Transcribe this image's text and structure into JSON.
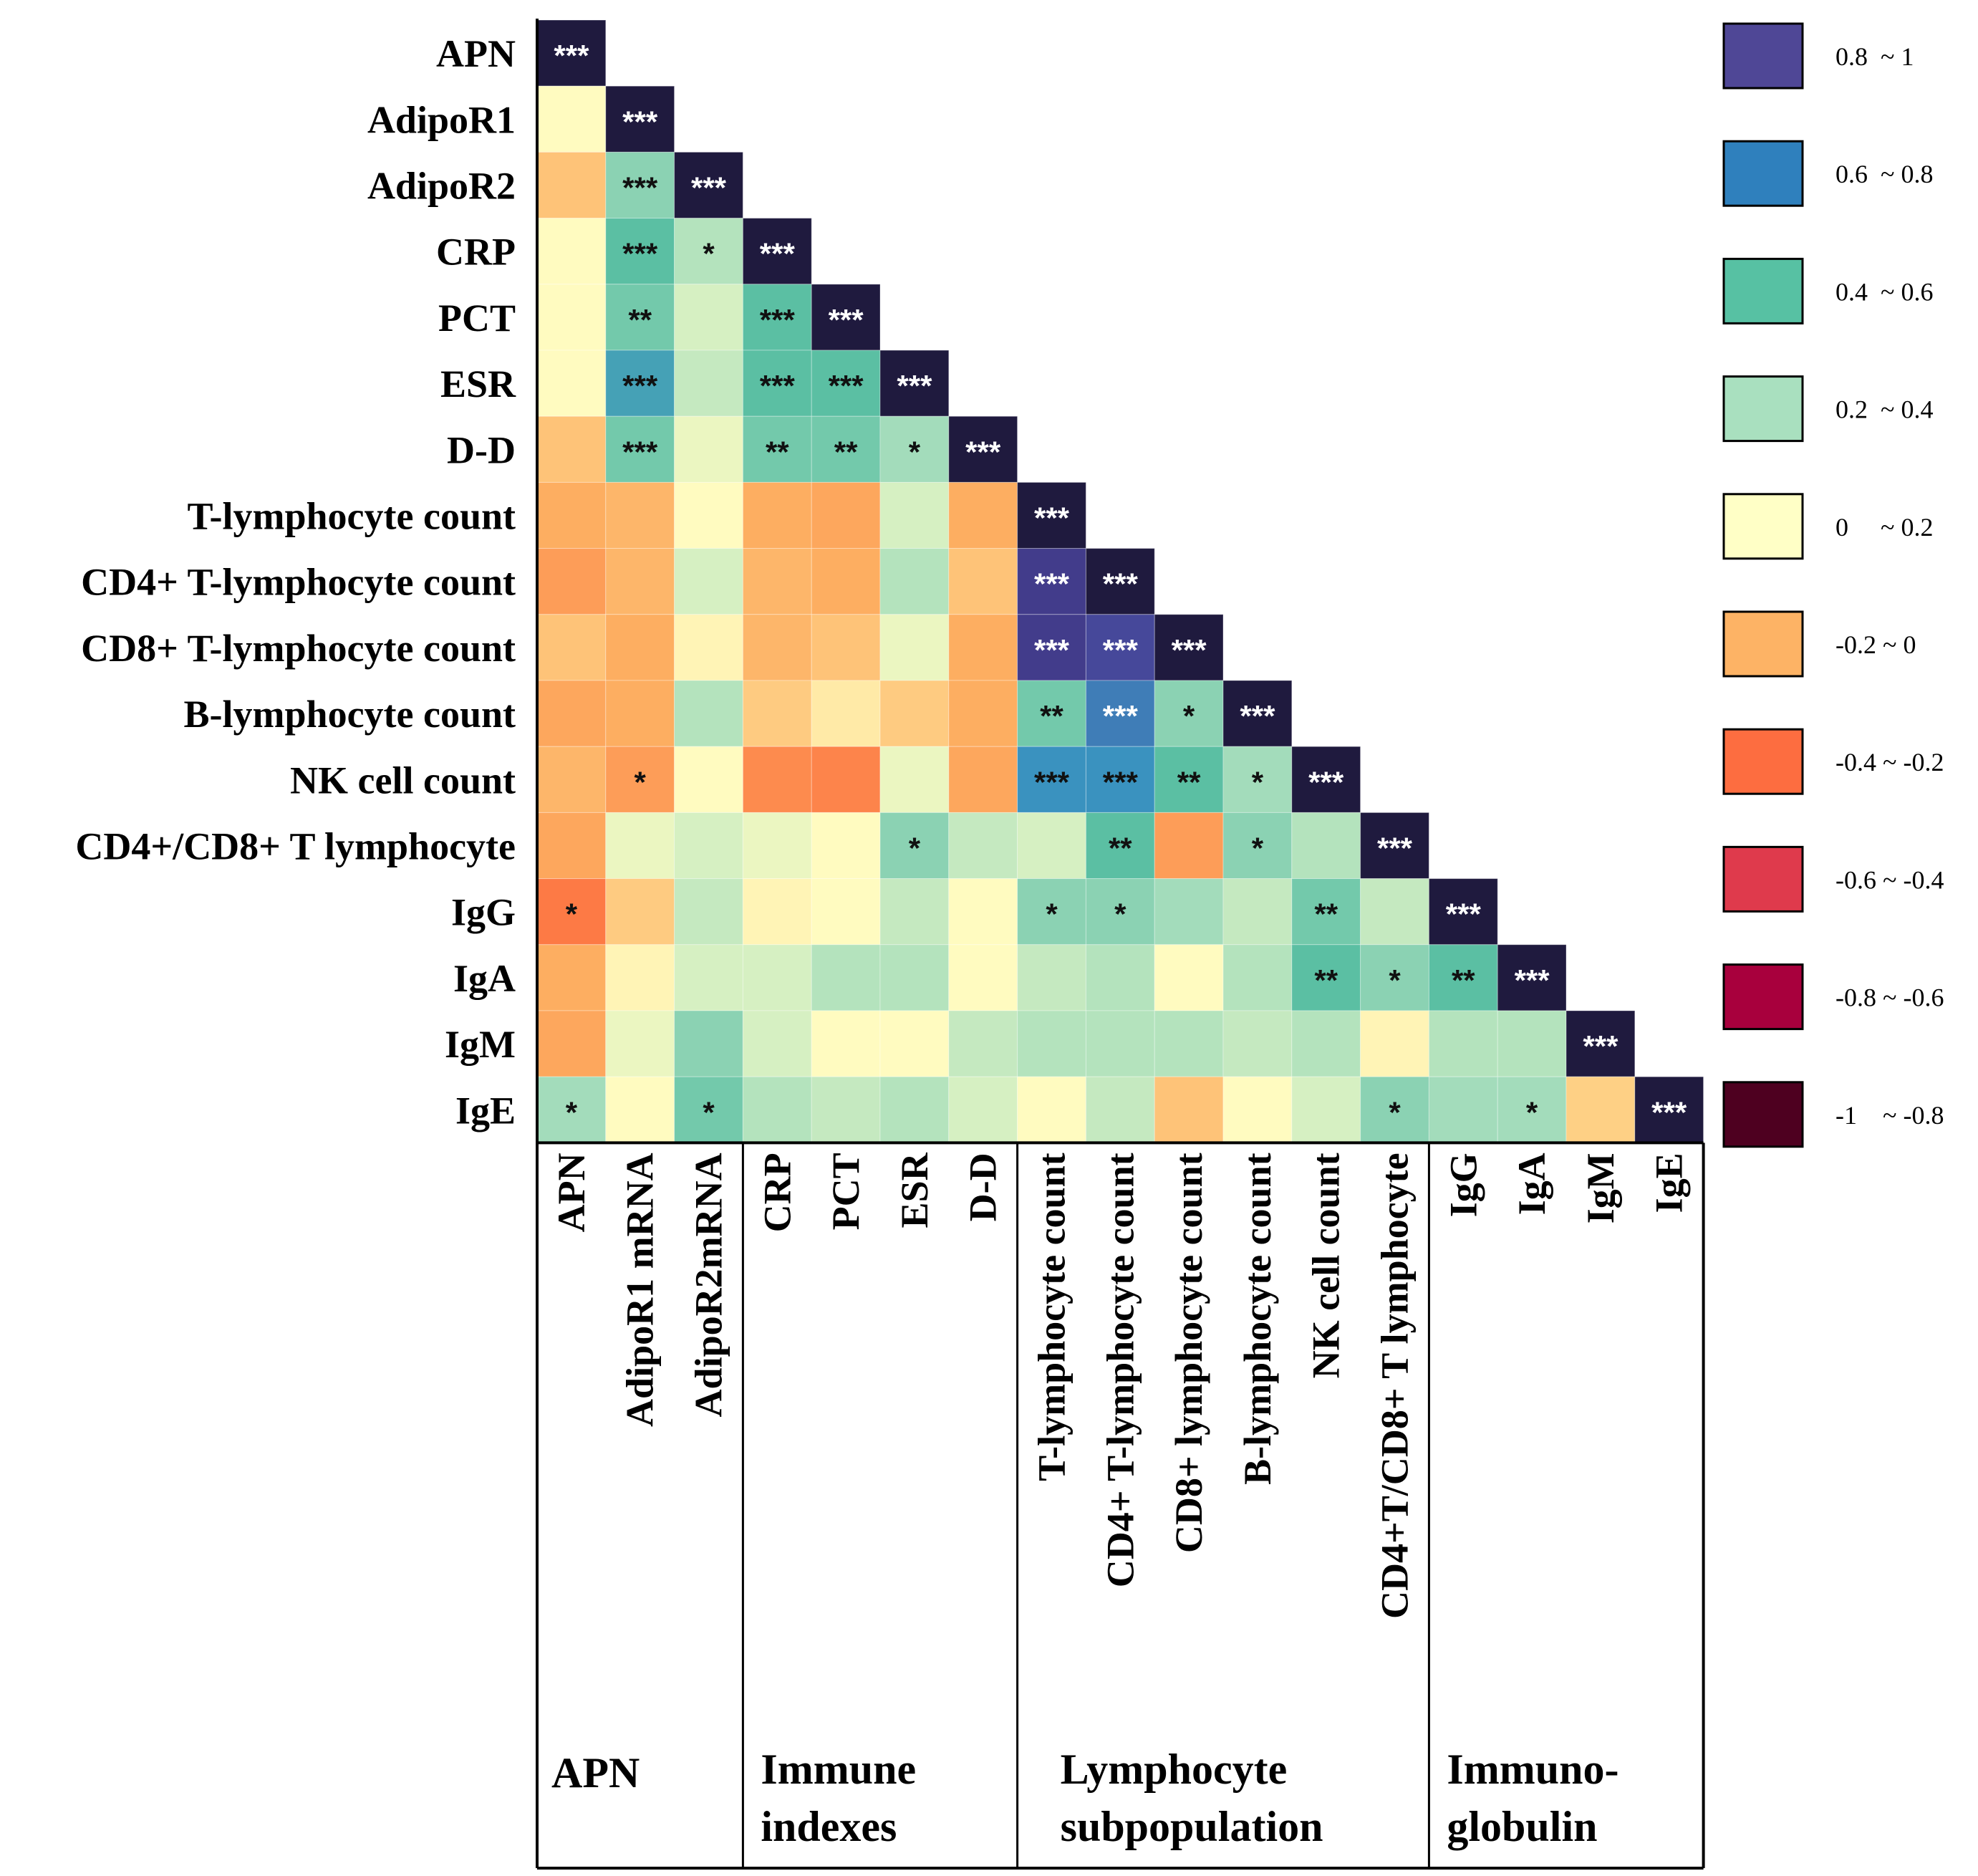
{
  "chart_data": {
    "type": "heatmap",
    "title": "",
    "row_labels": [
      "APN",
      "AdipoR1",
      "AdipoR2",
      "CRP",
      "PCT",
      "ESR",
      "D-D",
      "T-lymphocyte count",
      "CD4+ T-lymphocyte count",
      "CD8+ T-lymphocyte count",
      "B-lymphocyte count",
      "NK cell count",
      "CD4+/CD8+ T lymphocyte",
      "IgG",
      "IgA",
      "IgM",
      "IgE"
    ],
    "col_labels": [
      "APN",
      "AdipoR1 mRNA",
      "AdipoR2mRNA",
      "CRP",
      "PCT",
      "ESR",
      "D-D",
      "T-lymphocyte count",
      "CD4+ T-lymphocyte count",
      "CD8+ lymphocyte count",
      "B-lymphocyte count",
      "NK cell count",
      "CD4+T/CD8+ T lymphocyte",
      "IgG",
      "IgA",
      "IgM",
      "IgE"
    ],
    "groups": [
      {
        "label": "APN",
        "start": 0,
        "end": 2
      },
      {
        "label": "Immune indexes",
        "start": 3,
        "end": 6
      },
      {
        "label": "Lymphocyte subpopulation",
        "start": 7,
        "end": 12
      },
      {
        "label": "Immuno- globulin",
        "start": 13,
        "end": 16
      }
    ],
    "value_range": [
      -1,
      1
    ],
    "values": [
      [
        1.0
      ],
      [
        0.1,
        1.0
      ],
      [
        -0.05,
        0.4,
        1.0
      ],
      [
        0.1,
        0.5,
        0.3,
        1.0
      ],
      [
        0.1,
        0.45,
        0.2,
        0.5,
        1.0
      ],
      [
        0.1,
        0.6,
        0.25,
        0.5,
        0.5,
        1.0
      ],
      [
        -0.05,
        0.45,
        0.15,
        0.45,
        0.45,
        0.35,
        1.0
      ],
      [
        -0.1,
        -0.08,
        0.1,
        -0.1,
        -0.12,
        0.2,
        -0.1,
        1.0
      ],
      [
        -0.15,
        -0.08,
        0.2,
        -0.08,
        -0.1,
        0.3,
        -0.05,
        0.9,
        1.0
      ],
      [
        -0.05,
        -0.1,
        0.08,
        -0.08,
        -0.05,
        0.15,
        -0.1,
        0.9,
        0.85,
        1.0
      ],
      [
        -0.12,
        -0.1,
        0.3,
        -0.03,
        0.05,
        -0.03,
        -0.1,
        0.45,
        0.7,
        0.4,
        1.0
      ],
      [
        -0.08,
        -0.15,
        0.1,
        -0.2,
        -0.22,
        0.15,
        -0.12,
        0.65,
        0.65,
        0.5,
        0.35,
        1.0
      ],
      [
        -0.12,
        0.15,
        0.2,
        0.15,
        0.1,
        0.4,
        0.25,
        0.2,
        0.5,
        -0.15,
        0.4,
        0.3,
        1.0
      ],
      [
        -0.25,
        -0.03,
        0.25,
        0.08,
        0.1,
        0.25,
        0.1,
        0.4,
        0.4,
        0.35,
        0.25,
        0.45,
        0.25,
        1.0
      ],
      [
        -0.1,
        0.08,
        0.2,
        0.2,
        0.3,
        0.3,
        0.1,
        0.25,
        0.3,
        0.1,
        0.3,
        0.5,
        0.4,
        0.5,
        1.0
      ],
      [
        -0.12,
        0.15,
        0.4,
        0.2,
        0.1,
        0.1,
        0.25,
        0.3,
        0.3,
        0.3,
        0.25,
        0.3,
        0.08,
        0.3,
        0.3,
        1.0
      ],
      [
        0.35,
        0.1,
        0.45,
        0.3,
        0.25,
        0.3,
        0.2,
        0.1,
        0.25,
        -0.05,
        0.1,
        0.2,
        0.4,
        0.35,
        0.35,
        -0.02,
        1.0
      ]
    ],
    "significance": [
      [
        "***"
      ],
      [
        "",
        "***"
      ],
      [
        "",
        "***",
        "***"
      ],
      [
        "",
        "***",
        "*",
        "***"
      ],
      [
        "",
        "**",
        "",
        "***",
        "***"
      ],
      [
        "",
        "***",
        "",
        "***",
        "***",
        "***"
      ],
      [
        "",
        "***",
        "",
        "**",
        "**",
        "*",
        "***"
      ],
      [
        "",
        "",
        "",
        "",
        "",
        "",
        "",
        "***"
      ],
      [
        "",
        "",
        "",
        "",
        "",
        "",
        "",
        "***",
        "***"
      ],
      [
        "",
        "",
        "",
        "",
        "",
        "",
        "",
        "***",
        "***",
        "***"
      ],
      [
        "",
        "",
        "",
        "",
        "",
        "",
        "",
        "**",
        "***",
        "*",
        "***"
      ],
      [
        "",
        "*",
        "",
        "",
        "",
        "",
        "",
        "***",
        "***",
        "**",
        "*",
        "***"
      ],
      [
        "",
        "",
        "",
        "",
        "",
        "*",
        "",
        "",
        "**",
        "",
        "*",
        "",
        "***"
      ],
      [
        "*",
        "",
        "",
        "",
        "",
        "",
        "",
        "*",
        "*",
        "",
        "",
        "**",
        "",
        "***"
      ],
      [
        "",
        "",
        "",
        "",
        "",
        "",
        "",
        "",
        "",
        "",
        "",
        "**",
        "*",
        "**",
        "***"
      ],
      [
        "",
        "",
        "",
        "",
        "",
        "",
        "",
        "",
        "",
        "",
        "",
        "",
        "",
        "",
        "",
        "***"
      ],
      [
        "*",
        "",
        "*",
        "",
        "",
        "",
        "",
        "",
        "",
        "",
        "",
        "",
        "*",
        "",
        "*",
        "",
        "***"
      ]
    ],
    "legend": [
      {
        "label": "0.8  ~ 1",
        "color": "#4f4796"
      },
      {
        "label": "0.6  ~ 0.8",
        "color": "#2f80bd"
      },
      {
        "label": "0.4  ~ 0.6",
        "color": "#57c1a3"
      },
      {
        "label": "0.2  ~ 0.4",
        "color": "#a9e0bf"
      },
      {
        "label": "0     ~ 0.2",
        "color": "#ffffc6"
      },
      {
        "label": "-0.2 ~ 0",
        "color": "#fdb365"
      },
      {
        "label": "-0.4 ~ -0.2",
        "color": "#fd6d40"
      },
      {
        "label": "-0.6 ~ -0.4",
        "color": "#df3a4c"
      },
      {
        "label": "-0.8 ~ -0.6",
        "color": "#a8003d"
      },
      {
        "label": "-1    ~ -0.8",
        "color": "#4e0020"
      }
    ],
    "colors": {
      "diagonal": "#1f1a3e",
      "scale": [
        {
          "v": -1.0,
          "c": "#b2002e"
        },
        {
          "v": -0.25,
          "c": "#fd7a45"
        },
        {
          "v": -0.1,
          "c": "#fdae61"
        },
        {
          "v": 0.0,
          "c": "#fed88e"
        },
        {
          "v": 0.1,
          "c": "#fffbc0"
        },
        {
          "v": 0.2,
          "c": "#d6f0c2"
        },
        {
          "v": 0.35,
          "c": "#a3dcbb"
        },
        {
          "v": 0.5,
          "c": "#5bbfa3"
        },
        {
          "v": 0.65,
          "c": "#3a92bf"
        },
        {
          "v": 0.8,
          "c": "#4954a8"
        },
        {
          "v": 0.95,
          "c": "#3f307d"
        }
      ]
    }
  }
}
